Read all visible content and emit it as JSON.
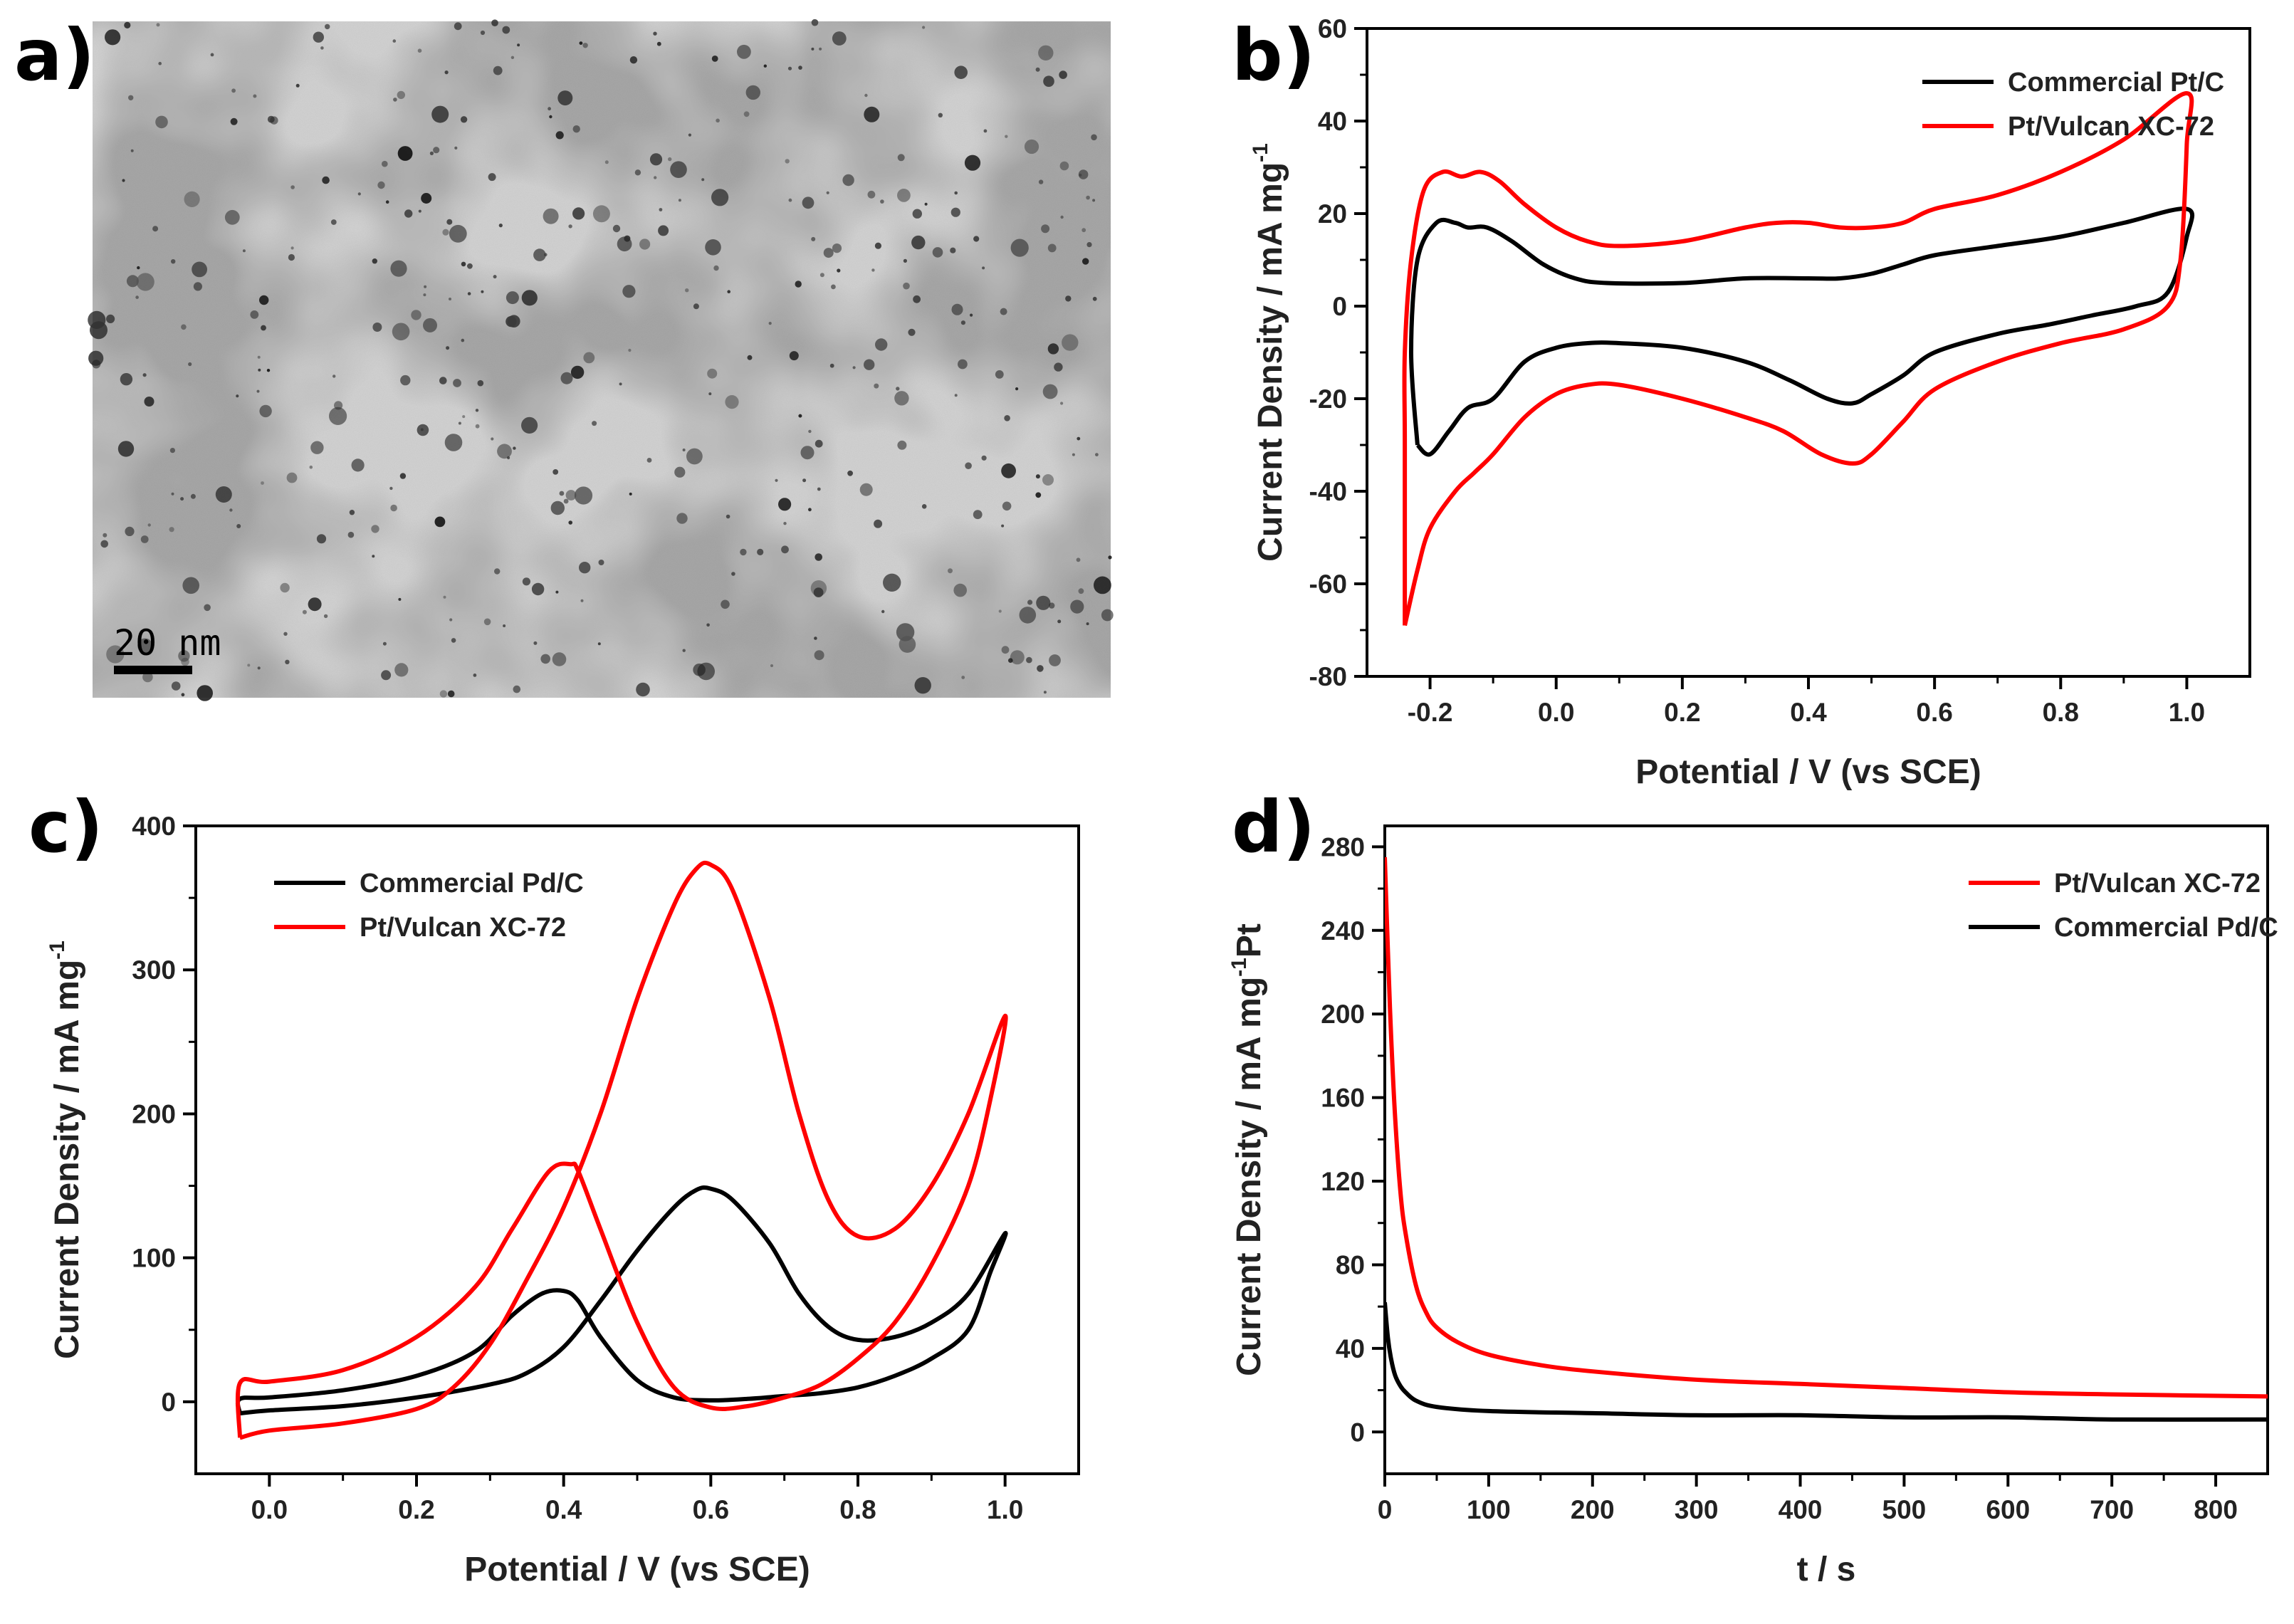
{
  "panels": {
    "a": {
      "letter": "a)",
      "scale_bar_label": "20 nm"
    },
    "b": {
      "letter": "b)"
    },
    "c": {
      "letter": "c)"
    },
    "d": {
      "letter": "d)"
    }
  },
  "colors": {
    "black": "#000000",
    "red": "#ff0000"
  },
  "chart_data": [
    {
      "id": "b",
      "type": "line",
      "xlabel": "Potential / V (vs SCE)",
      "ylabel_main": "Current Density / mA mg",
      "ylabel_sup": "-1",
      "ylabel_tail": "",
      "xlim": [
        -0.3,
        1.1
      ],
      "ylim": [
        -80,
        60
      ],
      "xticks": [
        -0.2,
        0.0,
        0.2,
        0.4,
        0.6,
        0.8,
        1.0
      ],
      "xtick_labels": [
        "-0.2",
        "0.0",
        "0.2",
        "0.4",
        "0.6",
        "0.8",
        "1.0"
      ],
      "yticks": [
        -80,
        -60,
        -40,
        -20,
        0,
        20,
        40,
        60
      ],
      "ytick_labels": [
        "-80",
        "-60",
        "-40",
        "-20",
        "0",
        "20",
        "40",
        "60"
      ],
      "legend": "top-right",
      "series": [
        {
          "name": "Commercial Pt/C",
          "color": "#000000",
          "points": [
            [
              -0.22,
              -30
            ],
            [
              -0.23,
              -10
            ],
            [
              -0.22,
              10
            ],
            [
              -0.19,
              18
            ],
            [
              -0.16,
              18
            ],
            [
              -0.14,
              17
            ],
            [
              -0.11,
              17
            ],
            [
              -0.07,
              14
            ],
            [
              -0.02,
              9
            ],
            [
              0.03,
              6
            ],
            [
              0.08,
              5
            ],
            [
              0.2,
              5
            ],
            [
              0.3,
              6
            ],
            [
              0.4,
              6
            ],
            [
              0.45,
              6
            ],
            [
              0.5,
              7
            ],
            [
              0.55,
              9
            ],
            [
              0.6,
              11
            ],
            [
              0.7,
              13
            ],
            [
              0.8,
              15
            ],
            [
              0.9,
              18
            ],
            [
              1.0,
              21
            ],
            [
              1.0,
              15
            ],
            [
              0.97,
              3
            ],
            [
              0.92,
              0
            ],
            [
              0.85,
              -2
            ],
            [
              0.78,
              -4
            ],
            [
              0.7,
              -6
            ],
            [
              0.6,
              -10
            ],
            [
              0.55,
              -15
            ],
            [
              0.5,
              -19
            ],
            [
              0.47,
              -21
            ],
            [
              0.43,
              -20
            ],
            [
              0.37,
              -16
            ],
            [
              0.3,
              -12
            ],
            [
              0.2,
              -9
            ],
            [
              0.1,
              -8
            ],
            [
              0.05,
              -8
            ],
            [
              0.0,
              -9
            ],
            [
              -0.05,
              -12
            ],
            [
              -0.1,
              -20
            ],
            [
              -0.14,
              -22
            ],
            [
              -0.17,
              -27
            ],
            [
              -0.2,
              -32
            ],
            [
              -0.22,
              -30
            ]
          ]
        },
        {
          "name": "Pt/Vulcan XC-72",
          "color": "#ff0000",
          "points": [
            [
              -0.24,
              -69
            ],
            [
              -0.24,
              -30
            ],
            [
              -0.24,
              -10
            ],
            [
              -0.23,
              10
            ],
            [
              -0.21,
              25
            ],
            [
              -0.18,
              29
            ],
            [
              -0.15,
              28
            ],
            [
              -0.12,
              29
            ],
            [
              -0.09,
              27
            ],
            [
              -0.05,
              22
            ],
            [
              0.0,
              17
            ],
            [
              0.05,
              14
            ],
            [
              0.1,
              13
            ],
            [
              0.2,
              14
            ],
            [
              0.3,
              17
            ],
            [
              0.35,
              18
            ],
            [
              0.4,
              18
            ],
            [
              0.45,
              17
            ],
            [
              0.5,
              17
            ],
            [
              0.55,
              18
            ],
            [
              0.6,
              21
            ],
            [
              0.7,
              24
            ],
            [
              0.8,
              29
            ],
            [
              0.9,
              36
            ],
            [
              1.0,
              46
            ],
            [
              1.0,
              35
            ],
            [
              0.99,
              10
            ],
            [
              0.97,
              0
            ],
            [
              0.9,
              -5
            ],
            [
              0.8,
              -8
            ],
            [
              0.7,
              -12
            ],
            [
              0.6,
              -18
            ],
            [
              0.55,
              -25
            ],
            [
              0.5,
              -32
            ],
            [
              0.47,
              -34
            ],
            [
              0.42,
              -32
            ],
            [
              0.36,
              -27
            ],
            [
              0.3,
              -24
            ],
            [
              0.2,
              -20
            ],
            [
              0.1,
              -17
            ],
            [
              0.05,
              -17
            ],
            [
              0.0,
              -19
            ],
            [
              -0.05,
              -24
            ],
            [
              -0.1,
              -32
            ],
            [
              -0.13,
              -36
            ],
            [
              -0.16,
              -40
            ],
            [
              -0.2,
              -48
            ],
            [
              -0.22,
              -57
            ],
            [
              -0.24,
              -69
            ]
          ]
        }
      ]
    },
    {
      "id": "c",
      "type": "line",
      "xlabel": "Potential / V (vs SCE)",
      "ylabel_main": "Current Density / mA mg",
      "ylabel_sup": "-1",
      "ylabel_tail": "",
      "xlim": [
        -0.1,
        1.1
      ],
      "ylim": [
        -50,
        400
      ],
      "xticks": [
        0.0,
        0.2,
        0.4,
        0.6,
        0.8,
        1.0
      ],
      "xtick_labels": [
        "0.0",
        "0.2",
        "0.4",
        "0.6",
        "0.8",
        "1.0"
      ],
      "yticks": [
        0,
        100,
        200,
        300,
        400
      ],
      "ytick_labels": [
        "0",
        "100",
        "200",
        "300",
        "400"
      ],
      "legend": "top-left",
      "series": [
        {
          "name": "Commercial Pd/C",
          "color": "#000000",
          "points": [
            [
              -0.04,
              -8
            ],
            [
              0.0,
              -6
            ],
            [
              0.1,
              -3
            ],
            [
              0.2,
              3
            ],
            [
              0.3,
              12
            ],
            [
              0.35,
              20
            ],
            [
              0.4,
              38
            ],
            [
              0.45,
              70
            ],
            [
              0.5,
              105
            ],
            [
              0.55,
              135
            ],
            [
              0.58,
              147
            ],
            [
              0.6,
              148
            ],
            [
              0.63,
              140
            ],
            [
              0.68,
              110
            ],
            [
              0.72,
              75
            ],
            [
              0.76,
              52
            ],
            [
              0.8,
              43
            ],
            [
              0.85,
              45
            ],
            [
              0.9,
              55
            ],
            [
              0.95,
              75
            ],
            [
              1.0,
              117
            ],
            [
              0.98,
              90
            ],
            [
              0.95,
              50
            ],
            [
              0.9,
              30
            ],
            [
              0.85,
              18
            ],
            [
              0.8,
              10
            ],
            [
              0.75,
              6
            ],
            [
              0.7,
              4
            ],
            [
              0.65,
              2
            ],
            [
              0.6,
              1
            ],
            [
              0.55,
              3
            ],
            [
              0.5,
              15
            ],
            [
              0.45,
              45
            ],
            [
              0.42,
              70
            ],
            [
              0.4,
              77
            ],
            [
              0.37,
              75
            ],
            [
              0.33,
              60
            ],
            [
              0.28,
              35
            ],
            [
              0.2,
              18
            ],
            [
              0.1,
              8
            ],
            [
              0.0,
              3
            ],
            [
              -0.04,
              2
            ],
            [
              -0.04,
              -8
            ]
          ]
        },
        {
          "name": "Pt/Vulcan XC-72",
          "color": "#ff0000",
          "points": [
            [
              -0.04,
              -25
            ],
            [
              0.0,
              -20
            ],
            [
              0.1,
              -15
            ],
            [
              0.2,
              -5
            ],
            [
              0.25,
              10
            ],
            [
              0.3,
              40
            ],
            [
              0.35,
              85
            ],
            [
              0.4,
              135
            ],
            [
              0.45,
              200
            ],
            [
              0.5,
              280
            ],
            [
              0.55,
              345
            ],
            [
              0.58,
              370
            ],
            [
              0.6,
              373
            ],
            [
              0.63,
              355
            ],
            [
              0.68,
              280
            ],
            [
              0.72,
              200
            ],
            [
              0.76,
              140
            ],
            [
              0.8,
              115
            ],
            [
              0.85,
              120
            ],
            [
              0.9,
              150
            ],
            [
              0.95,
              200
            ],
            [
              1.0,
              268
            ],
            [
              0.98,
              210
            ],
            [
              0.95,
              150
            ],
            [
              0.9,
              95
            ],
            [
              0.85,
              55
            ],
            [
              0.8,
              30
            ],
            [
              0.75,
              12
            ],
            [
              0.7,
              3
            ],
            [
              0.65,
              -3
            ],
            [
              0.6,
              -4
            ],
            [
              0.55,
              10
            ],
            [
              0.5,
              55
            ],
            [
              0.45,
              120
            ],
            [
              0.42,
              160
            ],
            [
              0.41,
              165
            ],
            [
              0.38,
              160
            ],
            [
              0.33,
              120
            ],
            [
              0.28,
              80
            ],
            [
              0.2,
              45
            ],
            [
              0.1,
              22
            ],
            [
              0.0,
              14
            ],
            [
              -0.04,
              13
            ],
            [
              -0.04,
              -25
            ]
          ]
        }
      ]
    },
    {
      "id": "d",
      "type": "line",
      "xlabel": "t / s",
      "ylabel_main": "Current Density / mA mg",
      "ylabel_sup": "-1",
      "ylabel_tail": "Pt",
      "xlim": [
        0,
        850
      ],
      "ylim": [
        -20,
        290
      ],
      "xticks": [
        0,
        100,
        200,
        300,
        400,
        500,
        600,
        700,
        800
      ],
      "xtick_labels": [
        "0",
        "100",
        "200",
        "300",
        "400",
        "500",
        "600",
        "700",
        "800"
      ],
      "yticks": [
        0,
        40,
        80,
        120,
        160,
        200,
        240,
        280
      ],
      "ytick_labels": [
        "0",
        "40",
        "80",
        "120",
        "160",
        "200",
        "240",
        "280"
      ],
      "legend": "top-right",
      "series": [
        {
          "name": "Pt/Vulcan XC-72",
          "color": "#ff0000",
          "points": [
            [
              0,
              275
            ],
            [
              3,
              230
            ],
            [
              6,
              190
            ],
            [
              10,
              150
            ],
            [
              15,
              115
            ],
            [
              20,
              95
            ],
            [
              30,
              70
            ],
            [
              40,
              57
            ],
            [
              50,
              50
            ],
            [
              70,
              43
            ],
            [
              100,
              37
            ],
            [
              150,
              32
            ],
            [
              200,
              29
            ],
            [
              300,
              25
            ],
            [
              400,
              23
            ],
            [
              500,
              21
            ],
            [
              600,
              19
            ],
            [
              700,
              18
            ],
            [
              850,
              17
            ]
          ]
        },
        {
          "name": "Commercial Pd/C",
          "color": "#000000",
          "points": [
            [
              0,
              62
            ],
            [
              3,
              45
            ],
            [
              6,
              35
            ],
            [
              10,
              27
            ],
            [
              15,
              22
            ],
            [
              20,
              19
            ],
            [
              30,
              15
            ],
            [
              50,
              12
            ],
            [
              100,
              10
            ],
            [
              200,
              9
            ],
            [
              300,
              8
            ],
            [
              400,
              8
            ],
            [
              500,
              7
            ],
            [
              600,
              7
            ],
            [
              700,
              6
            ],
            [
              850,
              6
            ]
          ]
        }
      ]
    }
  ]
}
